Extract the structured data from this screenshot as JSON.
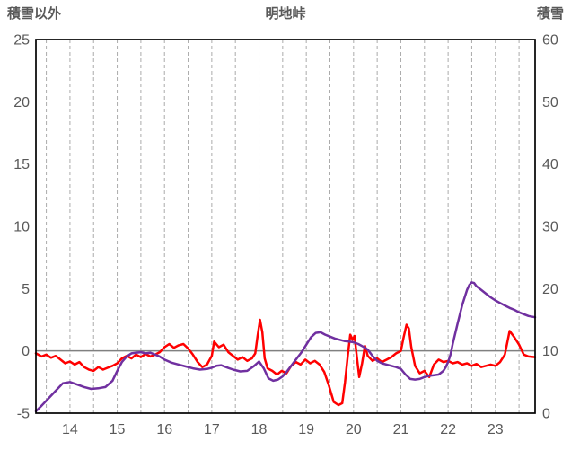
{
  "chart_data": {
    "type": "line",
    "title": "明地峠",
    "left_axis": {
      "label": "積雪以外",
      "min": -5,
      "max": 25,
      "ticks": [
        25,
        20,
        15,
        10,
        5,
        0,
        -5
      ]
    },
    "right_axis": {
      "label": "積雪",
      "min": 0,
      "max": 60,
      "ticks": [
        60,
        50,
        40,
        30,
        20,
        10,
        0
      ]
    },
    "x_axis": {
      "min": 13.28,
      "max": 23.84,
      "ticks": [
        14,
        15,
        16,
        17,
        18,
        19,
        20,
        21,
        22,
        23
      ],
      "tick_labels": [
        "14",
        "15",
        "16",
        "17",
        "18",
        "19",
        "20",
        "21",
        "22",
        "23"
      ],
      "gridline_start": 13.5,
      "gridline_end": 23.5,
      "gridline_step": 0.5
    },
    "zero_line_left_value": 0,
    "grid": true,
    "legend_position": "none",
    "colors": {
      "red_series": "#ff0000",
      "purple_series": "#7030a0",
      "grid": "#ababab",
      "zero_line": "#808080",
      "border": "#000000",
      "text": "#595959"
    },
    "line_width": 2.5,
    "series": [
      {
        "name": "積雪以外",
        "axis": "left",
        "color": "#ff0000",
        "points": [
          [
            13.28,
            -0.2
          ],
          [
            13.4,
            -0.45
          ],
          [
            13.5,
            -0.3
          ],
          [
            13.6,
            -0.55
          ],
          [
            13.7,
            -0.4
          ],
          [
            13.8,
            -0.7
          ],
          [
            13.9,
            -1.0
          ],
          [
            14.0,
            -0.85
          ],
          [
            14.1,
            -1.1
          ],
          [
            14.2,
            -0.9
          ],
          [
            14.3,
            -1.3
          ],
          [
            14.4,
            -1.5
          ],
          [
            14.5,
            -1.6
          ],
          [
            14.6,
            -1.3
          ],
          [
            14.7,
            -1.5
          ],
          [
            14.8,
            -1.35
          ],
          [
            14.9,
            -1.2
          ],
          [
            15.0,
            -1.0
          ],
          [
            15.1,
            -0.6
          ],
          [
            15.2,
            -0.4
          ],
          [
            15.3,
            -0.6
          ],
          [
            15.4,
            -0.3
          ],
          [
            15.5,
            -0.5
          ],
          [
            15.6,
            -0.25
          ],
          [
            15.7,
            -0.45
          ],
          [
            15.8,
            -0.3
          ],
          [
            15.9,
            -0.1
          ],
          [
            16.0,
            0.3
          ],
          [
            16.1,
            0.55
          ],
          [
            16.2,
            0.25
          ],
          [
            16.3,
            0.45
          ],
          [
            16.4,
            0.55
          ],
          [
            16.5,
            0.2
          ],
          [
            16.6,
            -0.3
          ],
          [
            16.7,
            -0.9
          ],
          [
            16.8,
            -1.3
          ],
          [
            16.9,
            -1.1
          ],
          [
            17.0,
            -0.4
          ],
          [
            17.05,
            0.75
          ],
          [
            17.15,
            0.3
          ],
          [
            17.25,
            0.5
          ],
          [
            17.35,
            -0.1
          ],
          [
            17.45,
            -0.4
          ],
          [
            17.55,
            -0.7
          ],
          [
            17.65,
            -0.5
          ],
          [
            17.75,
            -0.8
          ],
          [
            17.85,
            -0.6
          ],
          [
            17.92,
            -0.2
          ],
          [
            17.97,
            1.2
          ],
          [
            18.02,
            2.5
          ],
          [
            18.07,
            1.5
          ],
          [
            18.12,
            -0.6
          ],
          [
            18.18,
            -1.4
          ],
          [
            18.28,
            -1.6
          ],
          [
            18.38,
            -1.9
          ],
          [
            18.48,
            -1.6
          ],
          [
            18.58,
            -1.8
          ],
          [
            18.68,
            -1.2
          ],
          [
            18.78,
            -0.9
          ],
          [
            18.88,
            -1.1
          ],
          [
            18.98,
            -0.7
          ],
          [
            19.08,
            -1.0
          ],
          [
            19.18,
            -0.8
          ],
          [
            19.28,
            -1.1
          ],
          [
            19.38,
            -1.7
          ],
          [
            19.48,
            -2.8
          ],
          [
            19.58,
            -4.1
          ],
          [
            19.68,
            -4.35
          ],
          [
            19.76,
            -4.2
          ],
          [
            19.82,
            -2.5
          ],
          [
            19.88,
            -0.3
          ],
          [
            19.93,
            1.3
          ],
          [
            19.98,
            0.9
          ],
          [
            20.02,
            1.2
          ],
          [
            20.07,
            -0.5
          ],
          [
            20.12,
            -2.1
          ],
          [
            20.18,
            -1.0
          ],
          [
            20.24,
            0.4
          ],
          [
            20.3,
            -0.4
          ],
          [
            20.4,
            -0.8
          ],
          [
            20.5,
            -0.6
          ],
          [
            20.6,
            -0.9
          ],
          [
            20.7,
            -0.7
          ],
          [
            20.8,
            -0.5
          ],
          [
            20.9,
            -0.2
          ],
          [
            21.0,
            0.0
          ],
          [
            21.06,
            1.1
          ],
          [
            21.12,
            2.1
          ],
          [
            21.17,
            1.8
          ],
          [
            21.22,
            0.3
          ],
          [
            21.3,
            -1.2
          ],
          [
            21.4,
            -1.8
          ],
          [
            21.5,
            -1.6
          ],
          [
            21.6,
            -2.1
          ],
          [
            21.7,
            -1.1
          ],
          [
            21.8,
            -0.7
          ],
          [
            21.9,
            -0.9
          ],
          [
            22.0,
            -0.8
          ],
          [
            22.1,
            -1.0
          ],
          [
            22.2,
            -0.9
          ],
          [
            22.3,
            -1.1
          ],
          [
            22.4,
            -1.0
          ],
          [
            22.5,
            -1.2
          ],
          [
            22.6,
            -1.05
          ],
          [
            22.7,
            -1.3
          ],
          [
            22.8,
            -1.2
          ],
          [
            22.9,
            -1.1
          ],
          [
            23.0,
            -1.2
          ],
          [
            23.1,
            -0.9
          ],
          [
            23.2,
            -0.3
          ],
          [
            23.3,
            1.6
          ],
          [
            23.4,
            1.1
          ],
          [
            23.5,
            0.5
          ],
          [
            23.6,
            -0.3
          ],
          [
            23.7,
            -0.45
          ],
          [
            23.84,
            -0.5
          ]
        ]
      },
      {
        "name": "積雪",
        "axis": "right",
        "color": "#7030a0",
        "points": [
          [
            13.28,
            0.3
          ],
          [
            13.4,
            1.2
          ],
          [
            13.5,
            2.0
          ],
          [
            13.6,
            2.8
          ],
          [
            13.7,
            3.6
          ],
          [
            13.85,
            4.8
          ],
          [
            14.0,
            5.0
          ],
          [
            14.15,
            4.6
          ],
          [
            14.3,
            4.2
          ],
          [
            14.45,
            3.9
          ],
          [
            14.6,
            4.0
          ],
          [
            14.75,
            4.2
          ],
          [
            14.9,
            5.2
          ],
          [
            15.0,
            6.8
          ],
          [
            15.1,
            8.2
          ],
          [
            15.2,
            9.1
          ],
          [
            15.3,
            9.6
          ],
          [
            15.4,
            9.7
          ],
          [
            15.5,
            9.8
          ],
          [
            15.6,
            9.6
          ],
          [
            15.7,
            9.7
          ],
          [
            15.8,
            9.4
          ],
          [
            15.9,
            9.1
          ],
          [
            16.0,
            8.6
          ],
          [
            16.15,
            8.1
          ],
          [
            16.3,
            7.8
          ],
          [
            16.45,
            7.5
          ],
          [
            16.6,
            7.2
          ],
          [
            16.75,
            7.0
          ],
          [
            16.9,
            7.1
          ],
          [
            17.0,
            7.3
          ],
          [
            17.1,
            7.6
          ],
          [
            17.2,
            7.7
          ],
          [
            17.3,
            7.4
          ],
          [
            17.45,
            7.0
          ],
          [
            17.6,
            6.7
          ],
          [
            17.75,
            6.8
          ],
          [
            17.9,
            7.6
          ],
          [
            18.0,
            8.3
          ],
          [
            18.1,
            7.2
          ],
          [
            18.2,
            5.6
          ],
          [
            18.3,
            5.2
          ],
          [
            18.4,
            5.4
          ],
          [
            18.5,
            5.9
          ],
          [
            18.6,
            6.8
          ],
          [
            18.7,
            7.8
          ],
          [
            18.8,
            8.8
          ],
          [
            18.9,
            9.8
          ],
          [
            19.0,
            11.0
          ],
          [
            19.1,
            12.2
          ],
          [
            19.2,
            12.9
          ],
          [
            19.3,
            13.0
          ],
          [
            19.4,
            12.6
          ],
          [
            19.5,
            12.3
          ],
          [
            19.6,
            12.0
          ],
          [
            19.7,
            11.8
          ],
          [
            19.8,
            11.6
          ],
          [
            19.9,
            11.5
          ],
          [
            20.0,
            11.4
          ],
          [
            20.1,
            11.1
          ],
          [
            20.2,
            10.7
          ],
          [
            20.3,
            10.2
          ],
          [
            20.4,
            9.2
          ],
          [
            20.5,
            8.4
          ],
          [
            20.6,
            8.0
          ],
          [
            20.7,
            7.8
          ],
          [
            20.8,
            7.6
          ],
          [
            20.9,
            7.4
          ],
          [
            21.0,
            7.1
          ],
          [
            21.1,
            6.2
          ],
          [
            21.2,
            5.5
          ],
          [
            21.3,
            5.4
          ],
          [
            21.4,
            5.5
          ],
          [
            21.5,
            5.8
          ],
          [
            21.6,
            6.0
          ],
          [
            21.7,
            6.1
          ],
          [
            21.8,
            6.2
          ],
          [
            21.9,
            6.8
          ],
          [
            21.95,
            7.4
          ],
          [
            22.0,
            8.2
          ],
          [
            22.05,
            9.4
          ],
          [
            22.1,
            11.2
          ],
          [
            22.2,
            14.4
          ],
          [
            22.3,
            17.4
          ],
          [
            22.4,
            19.8
          ],
          [
            22.45,
            20.6
          ],
          [
            22.5,
            21.0
          ],
          [
            22.55,
            20.9
          ],
          [
            22.6,
            20.4
          ],
          [
            22.7,
            19.8
          ],
          [
            22.8,
            19.2
          ],
          [
            22.9,
            18.6
          ],
          [
            23.0,
            18.1
          ],
          [
            23.1,
            17.7
          ],
          [
            23.2,
            17.3
          ],
          [
            23.3,
            16.9
          ],
          [
            23.4,
            16.6
          ],
          [
            23.5,
            16.2
          ],
          [
            23.6,
            15.9
          ],
          [
            23.7,
            15.6
          ],
          [
            23.84,
            15.4
          ]
        ]
      }
    ]
  }
}
